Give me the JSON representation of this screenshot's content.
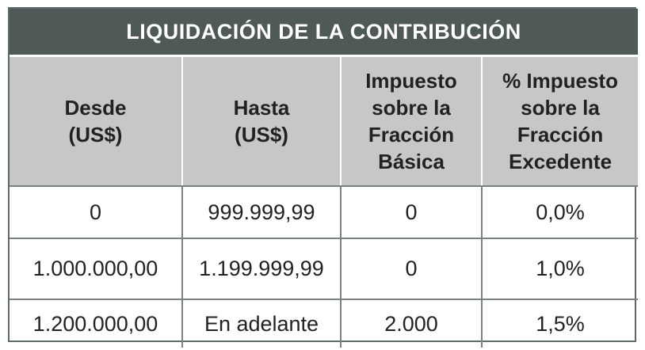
{
  "table": {
    "title": "LIQUIDACIÓN DE LA CONTRIBUCIÓN",
    "headers": [
      {
        "lines": [
          "Desde",
          "(US$)"
        ]
      },
      {
        "lines": [
          "Hasta",
          "(US$)"
        ]
      },
      {
        "lines": [
          "Impuesto",
          "sobre la",
          "Fracción",
          "Básica"
        ]
      },
      {
        "lines": [
          "% Impuesto",
          "sobre la",
          "Fracción",
          "Excedente"
        ]
      }
    ],
    "rows": [
      [
        "0",
        "999.999,99",
        "0",
        "0,0%"
      ],
      [
        "1.000.000,00",
        "1.199.999,99",
        "0",
        "1,0%"
      ],
      [
        "1.200.000,00",
        "En adelante",
        "2.000",
        "1,5%"
      ]
    ]
  },
  "colors": {
    "title_background": "#4f5a58",
    "header_background": "#c6c8c6",
    "border": "#7a8280"
  }
}
